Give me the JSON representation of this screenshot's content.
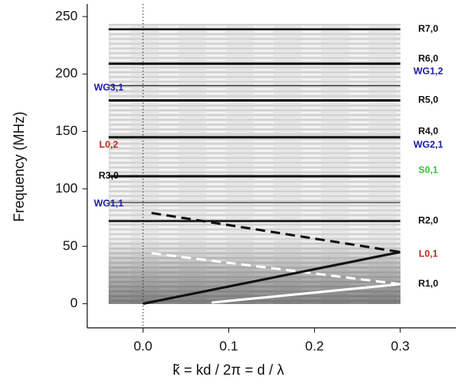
{
  "chart_data": {
    "type": "line",
    "xlabel": "k̃ = kd / 2π = d / λ",
    "ylabel": "Frequency (MHz)",
    "xlim": [
      -0.065,
      0.365
    ],
    "ylim": [
      -21,
      261
    ],
    "xticks": [
      {
        "value": 0,
        "label": "0.0"
      },
      0.1,
      0.2,
      0.3
    ],
    "yticks": [
      0,
      50,
      100,
      150,
      200,
      250
    ],
    "vline": 0,
    "series": [
      {
        "color": "#111111",
        "style": "solid",
        "width": 2.5,
        "x": [
          -0.04,
          0.3
        ],
        "values": [
          239,
          239
        ]
      },
      {
        "color": "#111111",
        "style": "solid",
        "width": 3,
        "x": [
          -0.04,
          0.3
        ],
        "values": [
          209,
          209
        ]
      },
      {
        "color": "#444444",
        "style": "solid",
        "width": 1.5,
        "x": [
          -0.04,
          0.3
        ],
        "values": [
          190,
          190
        ]
      },
      {
        "color": "#111111",
        "style": "solid",
        "width": 3,
        "x": [
          -0.04,
          0.3
        ],
        "values": [
          177,
          177
        ]
      },
      {
        "color": "#111111",
        "style": "solid",
        "width": 3,
        "x": [
          -0.04,
          0.3
        ],
        "values": [
          145,
          145
        ]
      },
      {
        "color": "#111111",
        "style": "solid",
        "width": 3,
        "x": [
          -0.04,
          0.3
        ],
        "values": [
          111,
          111
        ]
      },
      {
        "color": "#555555",
        "style": "solid",
        "width": 1.5,
        "x": [
          -0.04,
          0.3
        ],
        "values": [
          88,
          88
        ]
      },
      {
        "color": "#111111",
        "style": "solid",
        "width": 2.5,
        "x": [
          -0.04,
          0.3
        ],
        "values": [
          72,
          72
        ]
      },
      {
        "color": "#111111",
        "style": "dashed",
        "width": 3,
        "x": [
          0.01,
          0.3
        ],
        "values": [
          79,
          45
        ]
      },
      {
        "color": "#ffffff",
        "style": "dashed",
        "width": 3,
        "x": [
          0.01,
          0.3
        ],
        "values": [
          44,
          17
        ]
      },
      {
        "color": "#111111",
        "style": "solid",
        "width": 3,
        "x": [
          0,
          0.3
        ],
        "values": [
          0,
          45
        ]
      },
      {
        "color": "#ffffff",
        "style": "solid",
        "width": 3,
        "x": [
          0.08,
          0.3
        ],
        "values": [
          1,
          17
        ]
      }
    ],
    "annotations": [
      {
        "text": "R7,0",
        "y": 239,
        "side": "right",
        "color": "#111111"
      },
      {
        "text": "R6,0",
        "y": 213,
        "side": "right",
        "color": "#111111"
      },
      {
        "text": "WG1,2",
        "y": 202,
        "side": "right",
        "color": "#1a1aa8"
      },
      {
        "text": "R5,0",
        "y": 177,
        "side": "right",
        "color": "#111111"
      },
      {
        "text": "R4,0",
        "y": 150,
        "side": "right",
        "color": "#111111"
      },
      {
        "text": "WG2,1",
        "y": 138,
        "side": "right",
        "color": "#1a1aa8"
      },
      {
        "text": "S0,1",
        "y": 116,
        "side": "right",
        "color": "#2ecc2e"
      },
      {
        "text": "R2,0",
        "y": 72,
        "side": "right",
        "color": "#111111"
      },
      {
        "text": "L0,1",
        "y": 43,
        "side": "right",
        "color": "#c0281c"
      },
      {
        "text": "R1,0",
        "y": 17,
        "side": "right",
        "color": "#111111"
      },
      {
        "text": "WG3,1",
        "y": 188,
        "side": "left",
        "color": "#1a1aa8"
      },
      {
        "text": "L0,2",
        "y": 138,
        "side": "left",
        "color": "#c0281c"
      },
      {
        "text": "R3,0",
        "y": 111,
        "side": "left",
        "color": "#111111"
      },
      {
        "text": "WG1,1",
        "y": 87,
        "side": "left",
        "color": "#1a1aa8"
      }
    ]
  }
}
